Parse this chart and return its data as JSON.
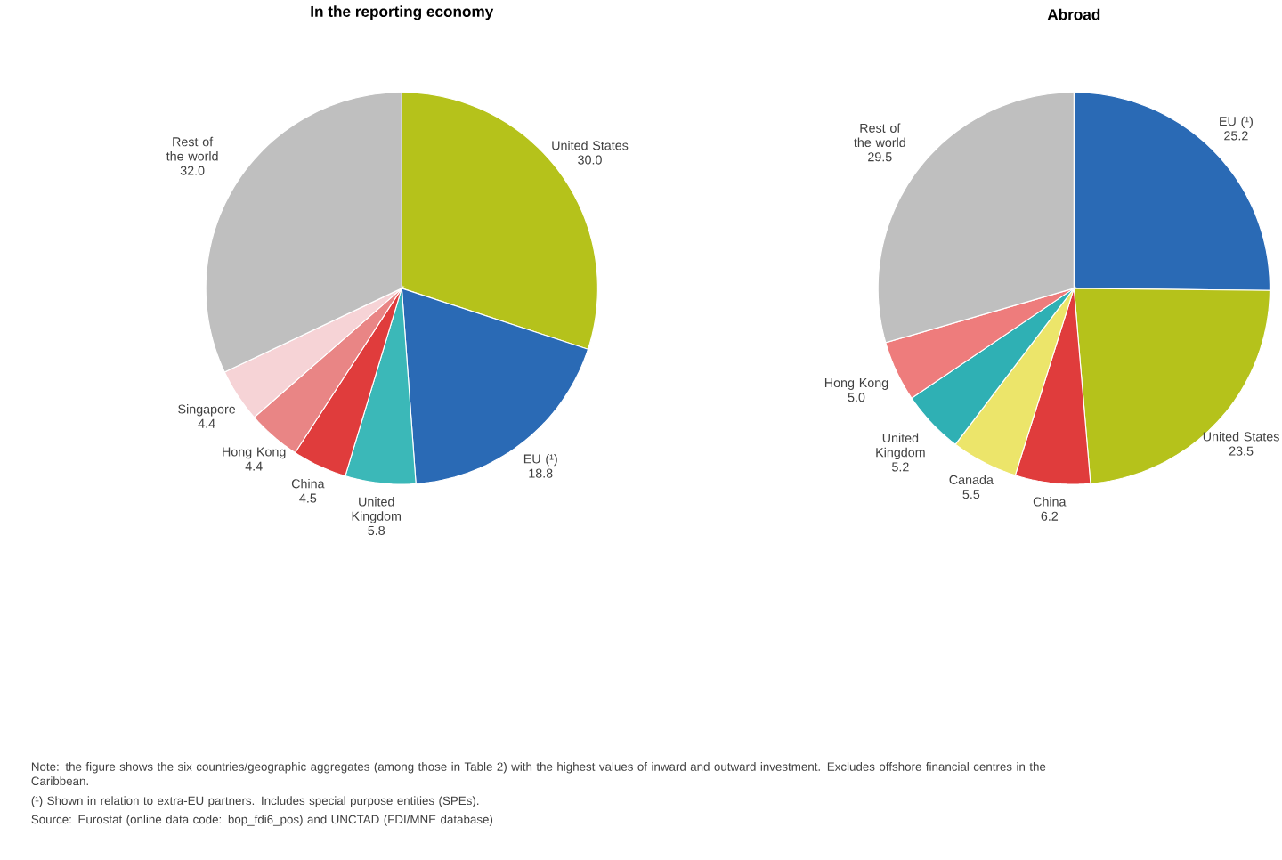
{
  "chart_data": [
    {
      "type": "pie",
      "title": "In the reporting economy",
      "categories": [
        "United States",
        "EU (¹)",
        "United Kingdom",
        "China",
        "Hong Kong",
        "Singapore",
        "Rest of the world"
      ],
      "values": [
        30.0,
        18.8,
        5.8,
        4.5,
        4.4,
        4.4,
        32.0
      ],
      "colors": [
        "#b5c21b",
        "#2a6ab5",
        "#3bb8b8",
        "#e03c3c",
        "#e98585",
        "#f6d3d6",
        "#bfbfbf"
      ],
      "value_labels": [
        "30.0",
        "18.8",
        "5.8",
        "4.5",
        "4.4",
        "4.4",
        "32.0"
      ],
      "annotations": [
        "Note: the figure shows the six countries/geographic aggregates (among those in Table 2) with the highest values of inward and outward investment. Excludes offshore financial centres in the Caribbean.",
        "(¹) Shown in relation to extra-EU partners. Includes special purpose entities (SPEs).",
        "Source: Eurostat (online data code: bop_fdi6_pos) and UNCTAD (FDI/MNE database)"
      ]
    },
    {
      "type": "pie",
      "title": "Abroad",
      "categories": [
        "EU (¹)",
        "United States",
        "China",
        "Canada",
        "United Kingdom",
        "Hong Kong",
        "Rest of the world"
      ],
      "values": [
        25.2,
        23.5,
        6.2,
        5.5,
        5.2,
        5.0,
        29.5
      ],
      "colors": [
        "#2a6ab5",
        "#b5c21b",
        "#e03c3c",
        "#ece56a",
        "#2fb0b4",
        "#ee7c7c",
        "#bfbfbf"
      ],
      "value_labels": [
        "25.2",
        "23.5",
        "6.2",
        "5.5",
        "5.2",
        "5.0",
        "29.5"
      ]
    }
  ]
}
